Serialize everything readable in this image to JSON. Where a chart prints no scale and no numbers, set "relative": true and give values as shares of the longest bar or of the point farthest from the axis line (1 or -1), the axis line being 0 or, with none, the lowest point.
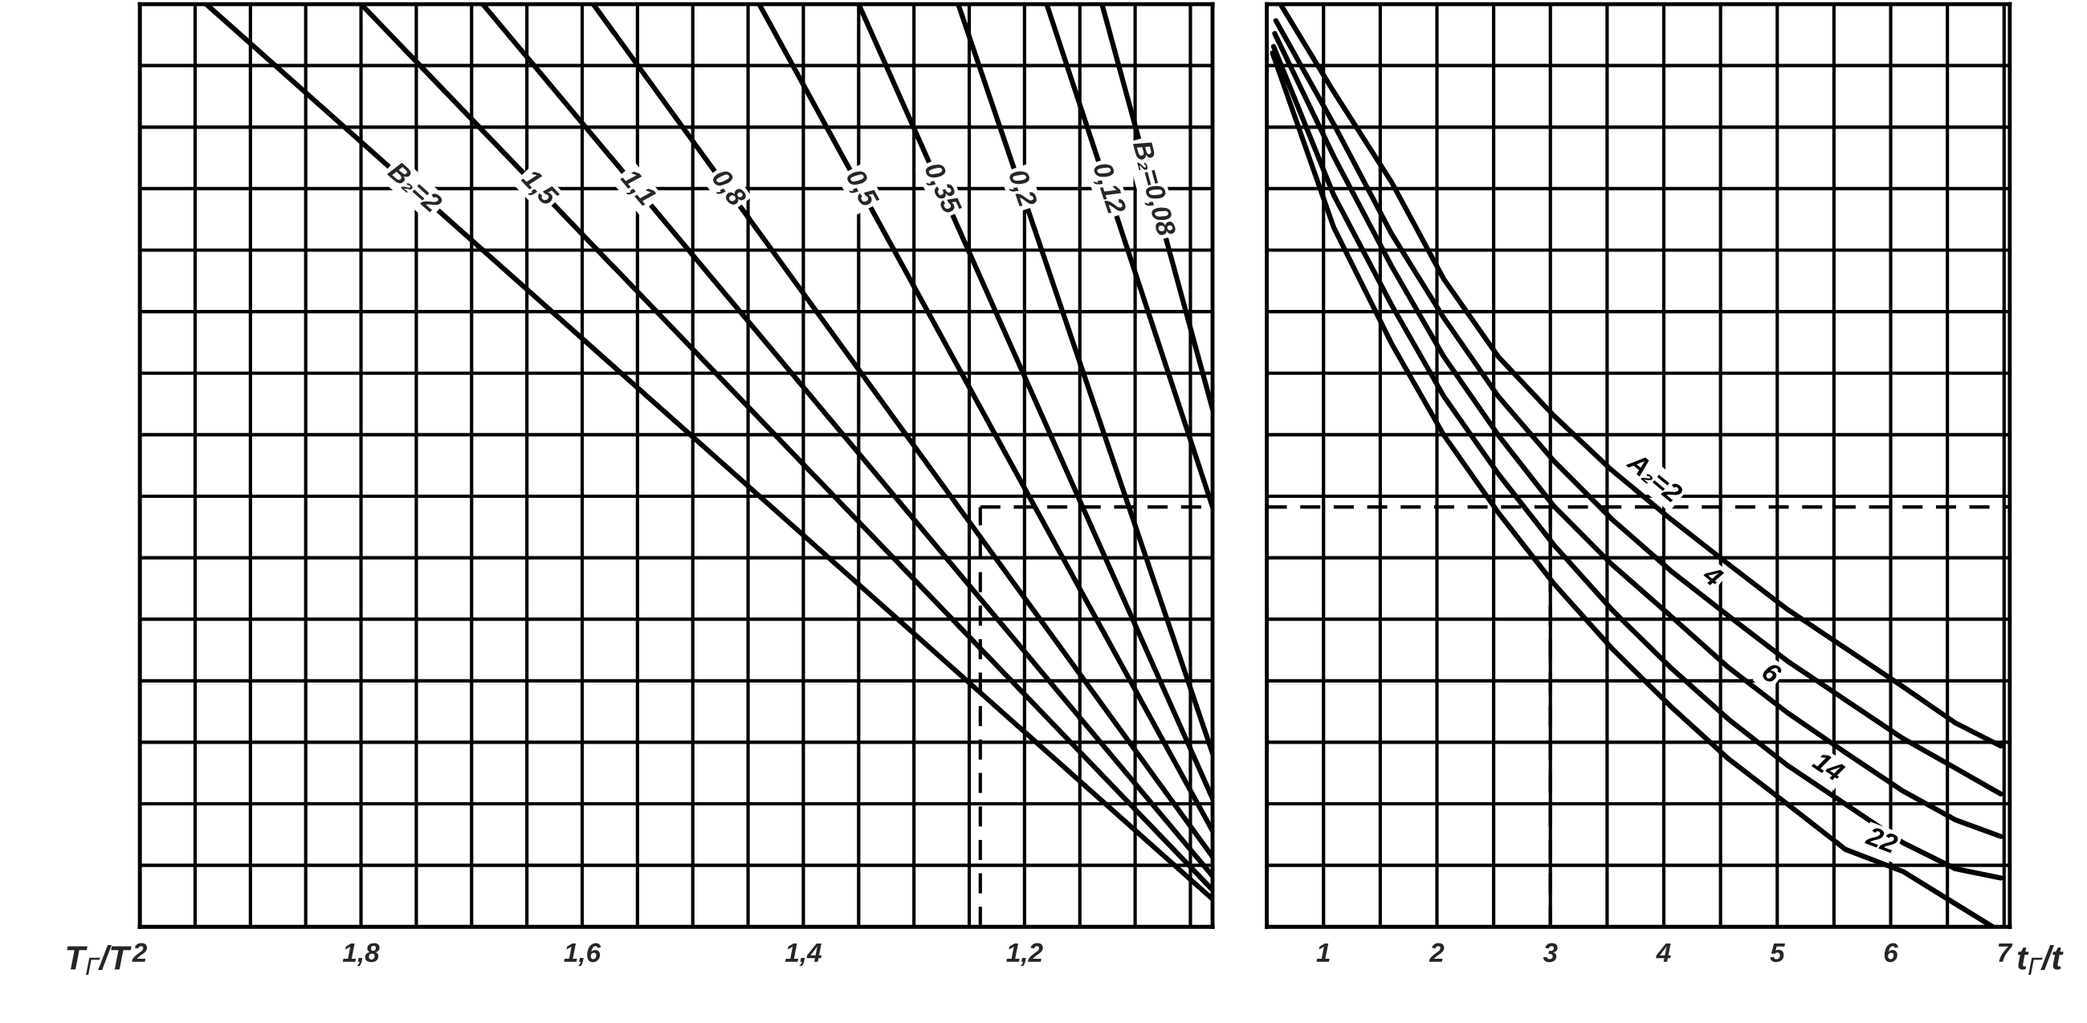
{
  "chart_data": [
    {
      "type": "line",
      "relative": true,
      "xlabel": "T$_{Г}$/T",
      "xlim": [
        2,
        1.03
      ],
      "grid": true,
      "line_style": "solid",
      "xticks": [
        {
          "value": 2,
          "label": "2"
        },
        {
          "value": 1.95,
          "label": null
        },
        {
          "value": 1.9,
          "label": null
        },
        {
          "value": 1.85,
          "label": null
        },
        {
          "value": 1.8,
          "label": "1,8"
        },
        {
          "value": 1.75,
          "label": null
        },
        {
          "value": 1.7,
          "label": null
        },
        {
          "value": 1.65,
          "label": null
        },
        {
          "value": 1.6,
          "label": "1,6"
        },
        {
          "value": 1.55,
          "label": null
        },
        {
          "value": 1.5,
          "label": null
        },
        {
          "value": 1.45,
          "label": null
        },
        {
          "value": 1.4,
          "label": "1,4"
        },
        {
          "value": 1.35,
          "label": null
        },
        {
          "value": 1.3,
          "label": null
        },
        {
          "value": 1.25,
          "label": null
        },
        {
          "value": 1.2,
          "label": "1,2"
        },
        {
          "value": 1.15,
          "label": null
        },
        {
          "value": 1.1,
          "label": null
        },
        {
          "value": 1.05,
          "label": null
        }
      ],
      "ref_lines": [
        {
          "axis": "x",
          "value": 1.24,
          "line_style": "dashed",
          "color": "#000000"
        },
        {
          "axis": "y",
          "value": 0.455,
          "line_style": "dashed",
          "color": "#000000"
        }
      ],
      "series": [
        {
          "name": "B₂=2",
          "color": "#000000",
          "x": [
            1.94,
            1.03
          ],
          "values": [
            1,
            0.03
          ]
        },
        {
          "name": "1,5",
          "color": "#000000",
          "x": [
            1.8,
            1.03
          ],
          "values": [
            1,
            0.04
          ]
        },
        {
          "name": "1,1",
          "color": "#000000",
          "x": [
            1.69,
            1.03
          ],
          "values": [
            1,
            0.055
          ]
        },
        {
          "name": "0,8",
          "color": "#000000",
          "x": [
            1.59,
            1.03
          ],
          "values": [
            1,
            0.076
          ]
        },
        {
          "name": "0,5",
          "color": "#000000",
          "x": [
            1.44,
            1.03
          ],
          "values": [
            1,
            0.104
          ]
        },
        {
          "name": "0,35",
          "color": "#000000",
          "x": [
            1.35,
            1.03
          ],
          "values": [
            1,
            0.139
          ]
        },
        {
          "name": "0,2",
          "color": "#000000",
          "x": [
            1.26,
            1.03
          ],
          "values": [
            1,
            0.188
          ]
        },
        {
          "name": "0,12",
          "color": "#000000",
          "x": [
            1.18,
            1.03
          ],
          "values": [
            1,
            0.455
          ]
        },
        {
          "name": "B₂=0,08",
          "color": "#000000",
          "x": [
            1.13,
            1.03
          ],
          "values": [
            1,
            0.561
          ]
        }
      ]
    },
    {
      "type": "line",
      "relative": true,
      "xlabel": "t$_{Г}$/t",
      "xlim": [
        0.5,
        7.05
      ],
      "grid": true,
      "line_style": "solid",
      "xticks": [
        {
          "value": 0.5,
          "label": null
        },
        1,
        {
          "value": 1.5,
          "label": null
        },
        2,
        {
          "value": 2.5,
          "label": null
        },
        3,
        {
          "value": 3.5,
          "label": null
        },
        4,
        {
          "value": 4.5,
          "label": null
        },
        5,
        {
          "value": 5.5,
          "label": null
        },
        6,
        {
          "value": 6.5,
          "label": null
        },
        7
      ],
      "ref_lines": [
        {
          "axis": "x",
          "value": 3,
          "line_style": "dashed",
          "color": "#000000"
        },
        {
          "axis": "y",
          "value": 0.455,
          "line_style": "dashed",
          "color": "#000000"
        }
      ],
      "series": [
        {
          "name": "A₂=2",
          "color": "#000000",
          "x": [
            0.62,
            1.09,
            1.6,
            2.06,
            2.54,
            3.03,
            3.54,
            4.06,
            4.57,
            5.09,
            5.6,
            6.11,
            6.57,
            6.97
          ],
          "values": [
            1,
            0.905,
            0.807,
            0.702,
            0.618,
            0.554,
            0.495,
            0.442,
            0.393,
            0.344,
            0.302,
            0.26,
            0.221,
            0.196
          ]
        },
        {
          "name": "4",
          "color": "#000000",
          "x": [
            0.58,
            1.09,
            1.6,
            2.06,
            2.54,
            3.03,
            3.54,
            4.06,
            4.57,
            5.09,
            5.6,
            6.11,
            6.57,
            6.97
          ],
          "values": [
            0.982,
            0.87,
            0.751,
            0.66,
            0.575,
            0.505,
            0.442,
            0.386,
            0.337,
            0.288,
            0.246,
            0.204,
            0.172,
            0.144
          ]
        },
        {
          "name": "6",
          "color": "#000000",
          "x": [
            0.57,
            1.09,
            1.6,
            2.06,
            2.54,
            3.03,
            3.54,
            4.06,
            4.57,
            5.09,
            5.6,
            6.11,
            6.57,
            6.97
          ],
          "values": [
            0.968,
            0.835,
            0.716,
            0.618,
            0.533,
            0.456,
            0.393,
            0.337,
            0.281,
            0.232,
            0.189,
            0.147,
            0.116,
            0.098
          ]
        },
        {
          "name": "14",
          "color": "#000000",
          "x": [
            0.56,
            1.09,
            1.6,
            2.06,
            2.54,
            3.03,
            3.54,
            4.06,
            4.57,
            5.09,
            5.6,
            6.11,
            6.57,
            6.97
          ],
          "values": [
            0.954,
            0.793,
            0.674,
            0.575,
            0.491,
            0.414,
            0.344,
            0.281,
            0.225,
            0.175,
            0.133,
            0.091,
            0.063,
            0.053
          ]
        },
        {
          "name": "22",
          "color": "#000000",
          "x": [
            0.55,
            1.09,
            1.6,
            2.06,
            2.54,
            3.03,
            3.54,
            4.06,
            4.57,
            5.09,
            5.6,
            6.11,
            6.57,
            6.9
          ],
          "values": [
            0.947,
            0.758,
            0.632,
            0.533,
            0.449,
            0.372,
            0.302,
            0.239,
            0.182,
            0.133,
            0.084,
            0.06,
            0.025,
            0
          ]
        }
      ]
    }
  ]
}
